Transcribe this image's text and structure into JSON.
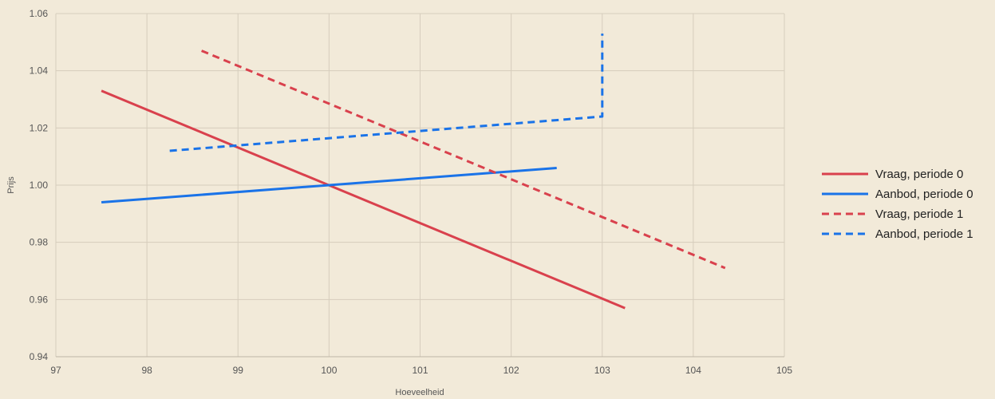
{
  "chart_data": {
    "type": "line",
    "title": "",
    "xlabel": "Hoeveelheid",
    "ylabel": "Prijs",
    "xlim": [
      97,
      105
    ],
    "ylim": [
      0.94,
      1.06
    ],
    "x_ticks": [
      "97",
      "98",
      "99",
      "100",
      "101",
      "102",
      "103",
      "104",
      "105"
    ],
    "y_ticks": [
      "0.94",
      "0.96",
      "0.98",
      "1.00",
      "1.02",
      "1.04",
      "1.06"
    ],
    "grid": true,
    "legend_position": "right",
    "series": [
      {
        "name": "Vraag, periode 0",
        "color": "#d9414d",
        "style": "solid",
        "points": [
          [
            97.5,
            1.033
          ],
          [
            103.25,
            0.957
          ]
        ]
      },
      {
        "name": "Aanbod, periode 0",
        "color": "#1a73e8",
        "style": "solid",
        "points": [
          [
            97.5,
            0.994
          ],
          [
            102.5,
            1.006
          ]
        ]
      },
      {
        "name": "Vraag, periode 1",
        "color": "#d9414d",
        "style": "dashed",
        "points": [
          [
            98.6,
            1.047
          ],
          [
            104.35,
            0.971
          ]
        ]
      },
      {
        "name": "Aanbod, periode 1",
        "color": "#1a73e8",
        "style": "dashed",
        "points": [
          [
            98.25,
            1.012
          ],
          [
            103.0,
            1.024
          ],
          [
            103.0,
            1.053
          ]
        ]
      }
    ]
  }
}
